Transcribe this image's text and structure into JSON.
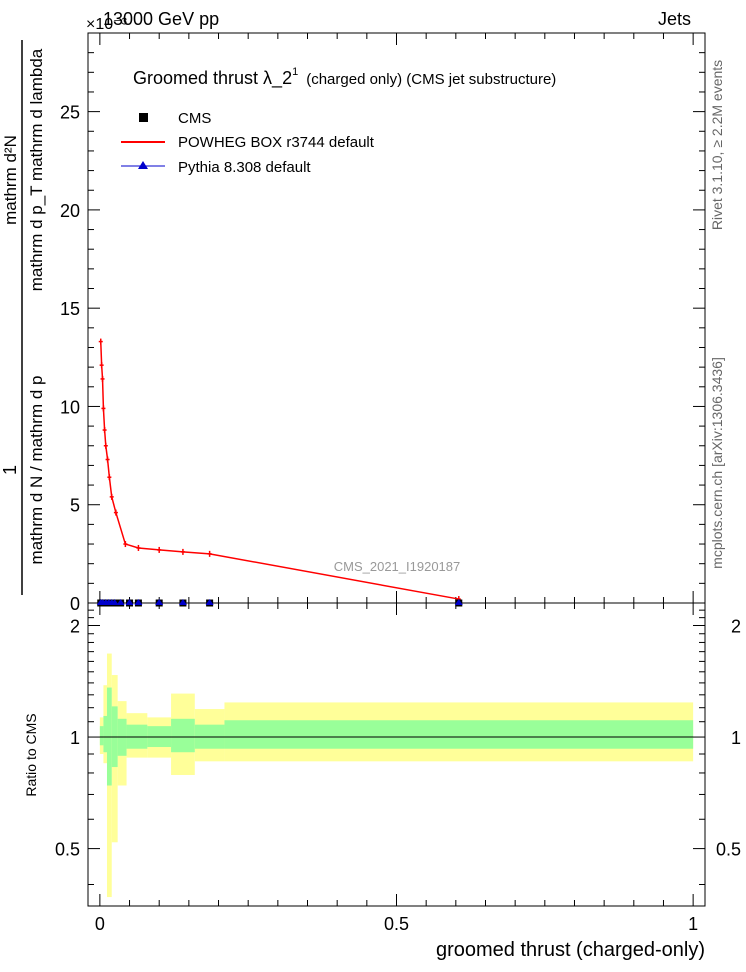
{
  "header": {
    "energy": "13000 GeV pp",
    "category": "Jets",
    "exponent": "×10⁻³",
    "side_top": "Rivet 3.1.10, ≥ 2.2M events",
    "side_bottom": "mcplots.cern.ch [arXiv:1306.3436]",
    "analysis_id": "CMS_2021_I1920187"
  },
  "legend": {
    "title_main": "Groomed thrust  λ_2",
    "title_sup": "1",
    "title_rest": "(charged only) (CMS jet substructure)",
    "entries": [
      "CMS",
      "POWHEG BOX r3744 default",
      "Pythia 8.308 default"
    ]
  },
  "colors": {
    "data": "#000000",
    "powheg": "#ff0000",
    "pythia": "#0000cc",
    "band_outer": "#ffff99",
    "band_inner": "#99ff99"
  },
  "chart_data": [
    {
      "type": "line",
      "xlabel": "groomed thrust (charged-only)",
      "ylabel": "1 / (mathrm d N / mathrm d p_T) · mathrm d²N / (mathrm d p_T mathrm d lambda)",
      "y_scale_label": "×10⁻³",
      "xlim": [
        -0.02,
        1.02
      ],
      "ylim": [
        0,
        29
      ],
      "x_ticks": [
        0,
        0.5,
        1
      ],
      "x_tick_labels": [
        "0",
        "0.5",
        "1"
      ],
      "y_ticks": [
        0,
        5,
        10,
        15,
        20,
        25
      ],
      "y_tick_labels": [
        "0",
        "5",
        "10",
        "15",
        "20",
        "25"
      ],
      "series": [
        {
          "name": "POWHEG BOX r3744 default",
          "x": [
            0.0015,
            0.003,
            0.0045,
            0.006,
            0.008,
            0.01,
            0.013,
            0.016,
            0.02,
            0.027,
            0.043,
            0.065,
            0.1,
            0.14,
            0.185,
            0.605
          ],
          "y": [
            13.3,
            12.1,
            11.4,
            9.9,
            8.8,
            8.0,
            7.3,
            6.4,
            5.4,
            4.6,
            3.0,
            2.8,
            2.7,
            2.6,
            2.5,
            0.2
          ]
        },
        {
          "name": "CMS",
          "x": [
            0.0015,
            0.005,
            0.01,
            0.015,
            0.02,
            0.025,
            0.035,
            0.05,
            0.065,
            0.1,
            0.14,
            0.185,
            0.605
          ],
          "y": [
            0,
            0,
            0,
            0,
            0,
            0,
            0,
            0,
            0,
            0,
            0,
            0,
            0
          ]
        },
        {
          "name": "Pythia 8.308 default",
          "x": [
            0.0015,
            0.005,
            0.01,
            0.015,
            0.02,
            0.025,
            0.035,
            0.05,
            0.065,
            0.1,
            0.14,
            0.185,
            0.605
          ],
          "y": [
            0,
            0,
            0,
            0,
            0,
            0,
            0,
            0,
            0,
            0,
            0,
            0,
            0
          ]
        }
      ]
    },
    {
      "type": "area",
      "xlabel": "groomed thrust (charged-only)",
      "ylabel": "Ratio to CMS",
      "xlim": [
        -0.02,
        1.02
      ],
      "ylim": [
        0.35,
        2.3
      ],
      "y_ticks": [
        0.5,
        1,
        2
      ],
      "y_tick_labels": [
        "0.5",
        "1",
        "2"
      ],
      "reference_line": 1,
      "bins": [
        {
          "x0": 0.0,
          "x1": 0.006,
          "outer": [
            0.9,
            1.13
          ],
          "inner": [
            0.95,
            1.07
          ]
        },
        {
          "x0": 0.006,
          "x1": 0.012,
          "outer": [
            0.85,
            1.38
          ],
          "inner": [
            0.91,
            1.14
          ]
        },
        {
          "x0": 0.012,
          "x1": 0.02,
          "outer": [
            0.37,
            1.68
          ],
          "inner": [
            0.74,
            1.36
          ]
        },
        {
          "x0": 0.02,
          "x1": 0.03,
          "outer": [
            0.52,
            1.47
          ],
          "inner": [
            0.83,
            1.21
          ]
        },
        {
          "x0": 0.03,
          "x1": 0.045,
          "outer": [
            0.74,
            1.25
          ],
          "inner": [
            0.89,
            1.12
          ]
        },
        {
          "x0": 0.045,
          "x1": 0.08,
          "outer": [
            0.88,
            1.16
          ],
          "inner": [
            0.93,
            1.08
          ]
        },
        {
          "x0": 0.08,
          "x1": 0.12,
          "outer": [
            0.88,
            1.13
          ],
          "inner": [
            0.94,
            1.07
          ]
        },
        {
          "x0": 0.12,
          "x1": 0.16,
          "outer": [
            0.79,
            1.31
          ],
          "inner": [
            0.91,
            1.12
          ]
        },
        {
          "x0": 0.16,
          "x1": 0.21,
          "outer": [
            0.86,
            1.19
          ],
          "inner": [
            0.93,
            1.08
          ]
        },
        {
          "x0": 0.21,
          "x1": 1.0,
          "outer": [
            0.86,
            1.24
          ],
          "inner": [
            0.93,
            1.11
          ]
        }
      ]
    }
  ]
}
